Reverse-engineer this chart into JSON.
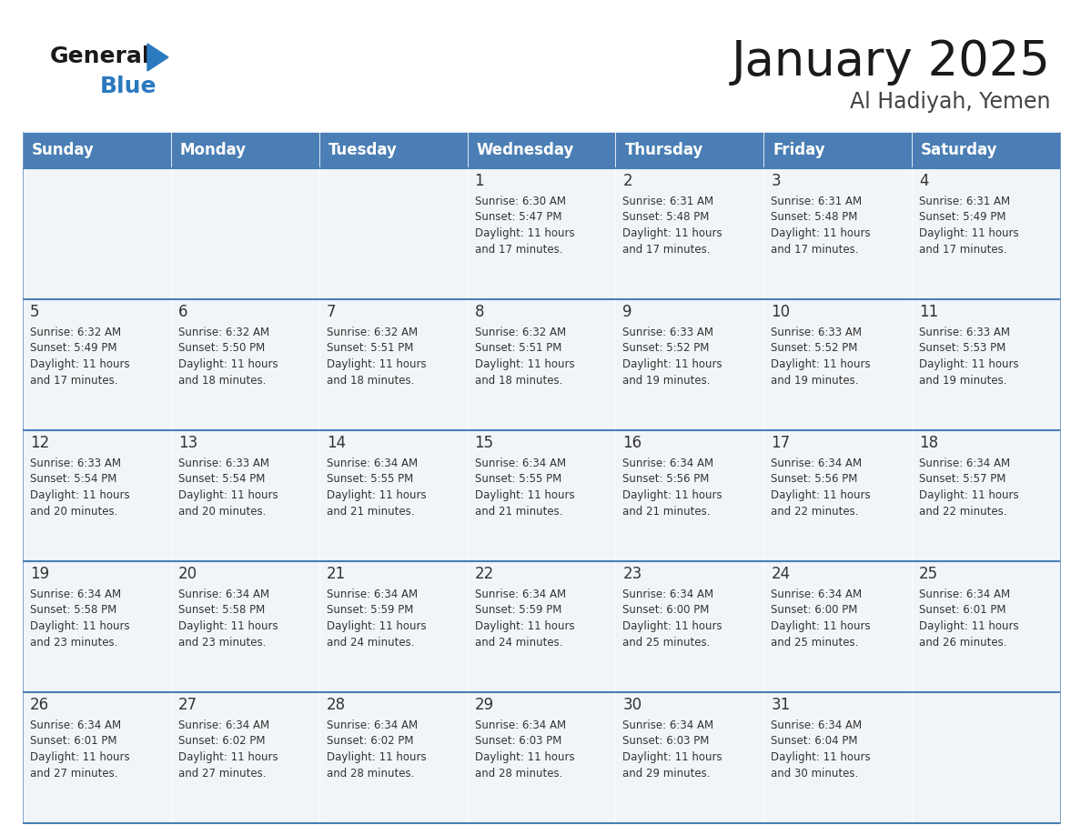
{
  "title": "January 2025",
  "subtitle": "Al Hadiyah, Yemen",
  "days_of_week": [
    "Sunday",
    "Monday",
    "Tuesday",
    "Wednesday",
    "Thursday",
    "Friday",
    "Saturday"
  ],
  "header_bg": "#4a7eb5",
  "header_text": "#ffffff",
  "cell_bg": "#f2f5f8",
  "line_color": "#4a7eb5",
  "day_num_color": "#333333",
  "text_color": "#333333",
  "background_color": "#ffffff",
  "title_color": "#1a1a1a",
  "subtitle_color": "#444444",
  "logo_black": "#1a1a1a",
  "logo_blue": "#2a7abf",
  "calendar": [
    [
      {
        "day": "",
        "info": ""
      },
      {
        "day": "",
        "info": ""
      },
      {
        "day": "",
        "info": ""
      },
      {
        "day": "1",
        "info": "Sunrise: 6:30 AM\nSunset: 5:47 PM\nDaylight: 11 hours\nand 17 minutes."
      },
      {
        "day": "2",
        "info": "Sunrise: 6:31 AM\nSunset: 5:48 PM\nDaylight: 11 hours\nand 17 minutes."
      },
      {
        "day": "3",
        "info": "Sunrise: 6:31 AM\nSunset: 5:48 PM\nDaylight: 11 hours\nand 17 minutes."
      },
      {
        "day": "4",
        "info": "Sunrise: 6:31 AM\nSunset: 5:49 PM\nDaylight: 11 hours\nand 17 minutes."
      }
    ],
    [
      {
        "day": "5",
        "info": "Sunrise: 6:32 AM\nSunset: 5:49 PM\nDaylight: 11 hours\nand 17 minutes."
      },
      {
        "day": "6",
        "info": "Sunrise: 6:32 AM\nSunset: 5:50 PM\nDaylight: 11 hours\nand 18 minutes."
      },
      {
        "day": "7",
        "info": "Sunrise: 6:32 AM\nSunset: 5:51 PM\nDaylight: 11 hours\nand 18 minutes."
      },
      {
        "day": "8",
        "info": "Sunrise: 6:32 AM\nSunset: 5:51 PM\nDaylight: 11 hours\nand 18 minutes."
      },
      {
        "day": "9",
        "info": "Sunrise: 6:33 AM\nSunset: 5:52 PM\nDaylight: 11 hours\nand 19 minutes."
      },
      {
        "day": "10",
        "info": "Sunrise: 6:33 AM\nSunset: 5:52 PM\nDaylight: 11 hours\nand 19 minutes."
      },
      {
        "day": "11",
        "info": "Sunrise: 6:33 AM\nSunset: 5:53 PM\nDaylight: 11 hours\nand 19 minutes."
      }
    ],
    [
      {
        "day": "12",
        "info": "Sunrise: 6:33 AM\nSunset: 5:54 PM\nDaylight: 11 hours\nand 20 minutes."
      },
      {
        "day": "13",
        "info": "Sunrise: 6:33 AM\nSunset: 5:54 PM\nDaylight: 11 hours\nand 20 minutes."
      },
      {
        "day": "14",
        "info": "Sunrise: 6:34 AM\nSunset: 5:55 PM\nDaylight: 11 hours\nand 21 minutes."
      },
      {
        "day": "15",
        "info": "Sunrise: 6:34 AM\nSunset: 5:55 PM\nDaylight: 11 hours\nand 21 minutes."
      },
      {
        "day": "16",
        "info": "Sunrise: 6:34 AM\nSunset: 5:56 PM\nDaylight: 11 hours\nand 21 minutes."
      },
      {
        "day": "17",
        "info": "Sunrise: 6:34 AM\nSunset: 5:56 PM\nDaylight: 11 hours\nand 22 minutes."
      },
      {
        "day": "18",
        "info": "Sunrise: 6:34 AM\nSunset: 5:57 PM\nDaylight: 11 hours\nand 22 minutes."
      }
    ],
    [
      {
        "day": "19",
        "info": "Sunrise: 6:34 AM\nSunset: 5:58 PM\nDaylight: 11 hours\nand 23 minutes."
      },
      {
        "day": "20",
        "info": "Sunrise: 6:34 AM\nSunset: 5:58 PM\nDaylight: 11 hours\nand 23 minutes."
      },
      {
        "day": "21",
        "info": "Sunrise: 6:34 AM\nSunset: 5:59 PM\nDaylight: 11 hours\nand 24 minutes."
      },
      {
        "day": "22",
        "info": "Sunrise: 6:34 AM\nSunset: 5:59 PM\nDaylight: 11 hours\nand 24 minutes."
      },
      {
        "day": "23",
        "info": "Sunrise: 6:34 AM\nSunset: 6:00 PM\nDaylight: 11 hours\nand 25 minutes."
      },
      {
        "day": "24",
        "info": "Sunrise: 6:34 AM\nSunset: 6:00 PM\nDaylight: 11 hours\nand 25 minutes."
      },
      {
        "day": "25",
        "info": "Sunrise: 6:34 AM\nSunset: 6:01 PM\nDaylight: 11 hours\nand 26 minutes."
      }
    ],
    [
      {
        "day": "26",
        "info": "Sunrise: 6:34 AM\nSunset: 6:01 PM\nDaylight: 11 hours\nand 27 minutes."
      },
      {
        "day": "27",
        "info": "Sunrise: 6:34 AM\nSunset: 6:02 PM\nDaylight: 11 hours\nand 27 minutes."
      },
      {
        "day": "28",
        "info": "Sunrise: 6:34 AM\nSunset: 6:02 PM\nDaylight: 11 hours\nand 28 minutes."
      },
      {
        "day": "29",
        "info": "Sunrise: 6:34 AM\nSunset: 6:03 PM\nDaylight: 11 hours\nand 28 minutes."
      },
      {
        "day": "30",
        "info": "Sunrise: 6:34 AM\nSunset: 6:03 PM\nDaylight: 11 hours\nand 29 minutes."
      },
      {
        "day": "31",
        "info": "Sunrise: 6:34 AM\nSunset: 6:04 PM\nDaylight: 11 hours\nand 30 minutes."
      },
      {
        "day": "",
        "info": ""
      }
    ]
  ]
}
